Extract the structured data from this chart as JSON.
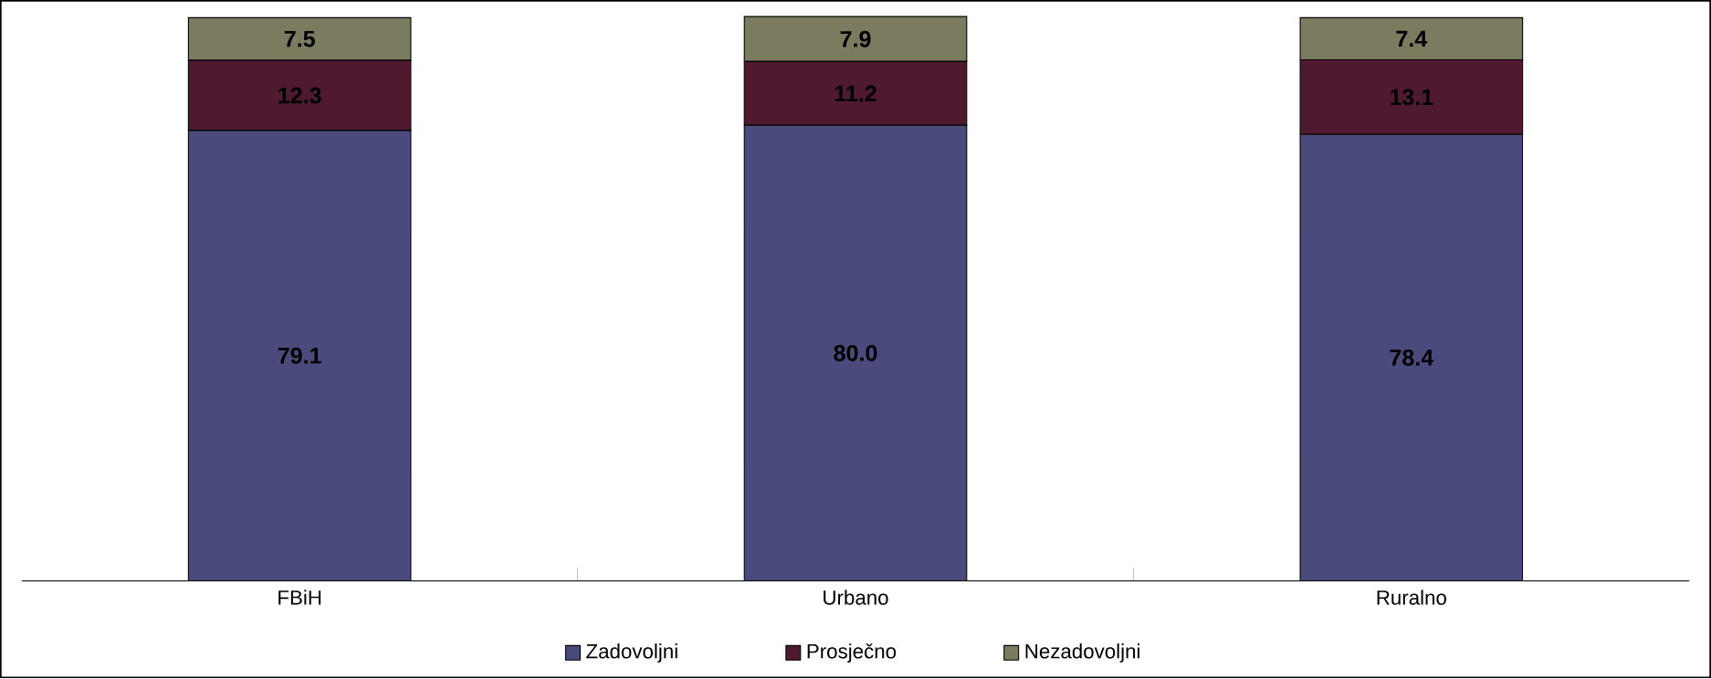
{
  "chart_data": {
    "type": "bar",
    "stacked": true,
    "legend": "bottom",
    "categories": [
      "FBiH",
      "Urbano",
      "Ruralno"
    ],
    "series": [
      {
        "name": "Zadovoljni",
        "color": "#4a4a7c",
        "values": [
          79.1,
          80.0,
          78.4
        ],
        "value_labels": [
          "79.1",
          "80.0",
          "78.4"
        ]
      },
      {
        "name": "Prosječno",
        "color": "#4f1a30",
        "values": [
          12.3,
          11.2,
          13.1
        ],
        "value_labels": [
          "12.3",
          "11.2",
          "13.1"
        ]
      },
      {
        "name": "Nezadovoljni",
        "color": "#7b7b60",
        "values": [
          7.5,
          7.9,
          7.4
        ],
        "value_labels": [
          "7.5",
          "7.9",
          "7.4"
        ]
      }
    ]
  }
}
